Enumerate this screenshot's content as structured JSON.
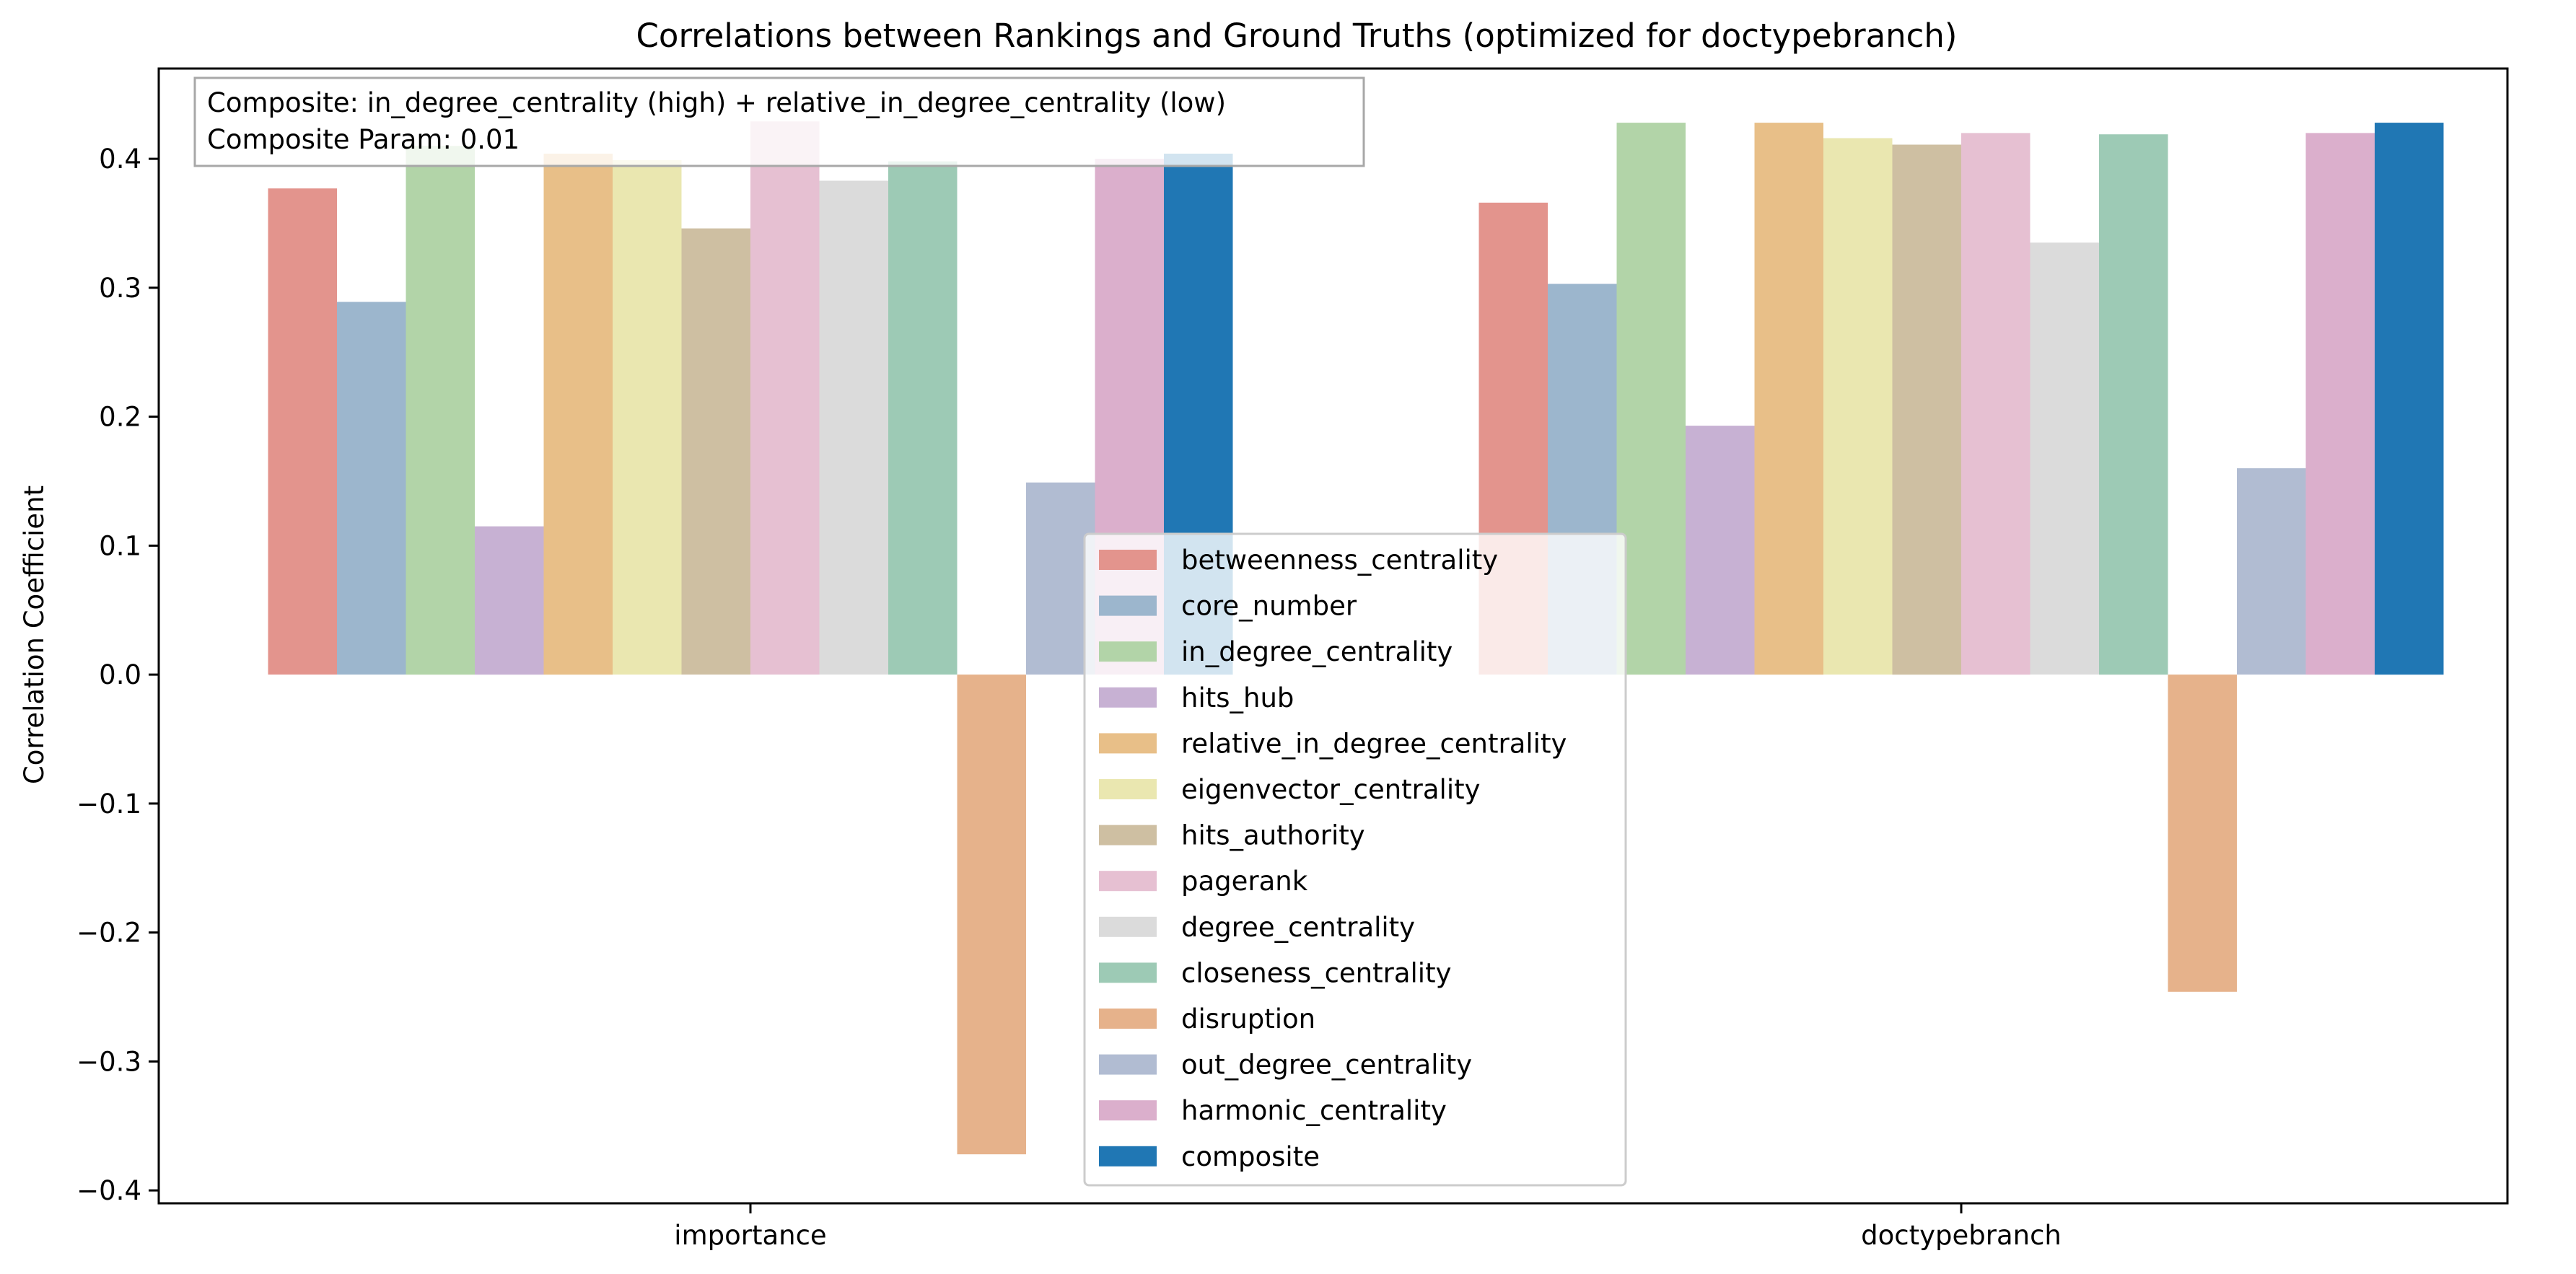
{
  "chart_data": {
    "type": "bar",
    "title": "Correlations between Rankings and Ground Truths (optimized for doctypebranch)",
    "xlabel": "",
    "ylabel": "Correlation Coefficient",
    "ylim": [
      -0.41,
      0.47
    ],
    "yticks": [
      -0.4,
      -0.3,
      -0.2,
      -0.1,
      0.0,
      0.1,
      0.2,
      0.3,
      0.4
    ],
    "ytick_labels": [
      "−0.4",
      "−0.3",
      "−0.2",
      "−0.1",
      "0.0",
      "0.1",
      "0.2",
      "0.3",
      "0.4"
    ],
    "categories": [
      "importance",
      "doctypebranch"
    ],
    "grid": false,
    "legend_position": "center",
    "annotation": {
      "line1": "Composite: in_degree_centrality (high) + relative_in_degree_centrality (low)",
      "line2": "Composite Param: 0.01"
    },
    "series": [
      {
        "name": "betweenness_centrality",
        "color": "#e3948d",
        "values": [
          0.377,
          0.366
        ]
      },
      {
        "name": "core_number",
        "color": "#9cb6cd",
        "values": [
          0.289,
          0.303
        ]
      },
      {
        "name": "in_degree_centrality",
        "color": "#b2d4a8",
        "values": [
          0.41,
          0.428
        ]
      },
      {
        "name": "hits_hub",
        "color": "#c7b1d3",
        "values": [
          0.115,
          0.193
        ]
      },
      {
        "name": "relative_in_degree_centrality",
        "color": "#e8bf88",
        "values": [
          0.404,
          0.428
        ]
      },
      {
        "name": "eigenvector_centrality",
        "color": "#eae7b0",
        "values": [
          0.399,
          0.416
        ]
      },
      {
        "name": "hits_authority",
        "color": "#cebfa2",
        "values": [
          0.346,
          0.411
        ]
      },
      {
        "name": "pagerank",
        "color": "#e6c0d2",
        "values": [
          0.429,
          0.42
        ]
      },
      {
        "name": "degree_centrality",
        "color": "#dbdbdb",
        "values": [
          0.383,
          0.335
        ]
      },
      {
        "name": "closeness_centrality",
        "color": "#9dcab5",
        "values": [
          0.398,
          0.419
        ]
      },
      {
        "name": "disruption",
        "color": "#e6b28b",
        "values": [
          -0.372,
          -0.246
        ]
      },
      {
        "name": "out_degree_centrality",
        "color": "#b1bcd2",
        "values": [
          0.149,
          0.16
        ]
      },
      {
        "name": "harmonic_centrality",
        "color": "#dbafcc",
        "values": [
          0.4,
          0.42
        ]
      },
      {
        "name": "composite",
        "color": "#2077b4",
        "values": [
          0.404,
          0.428
        ]
      }
    ]
  }
}
